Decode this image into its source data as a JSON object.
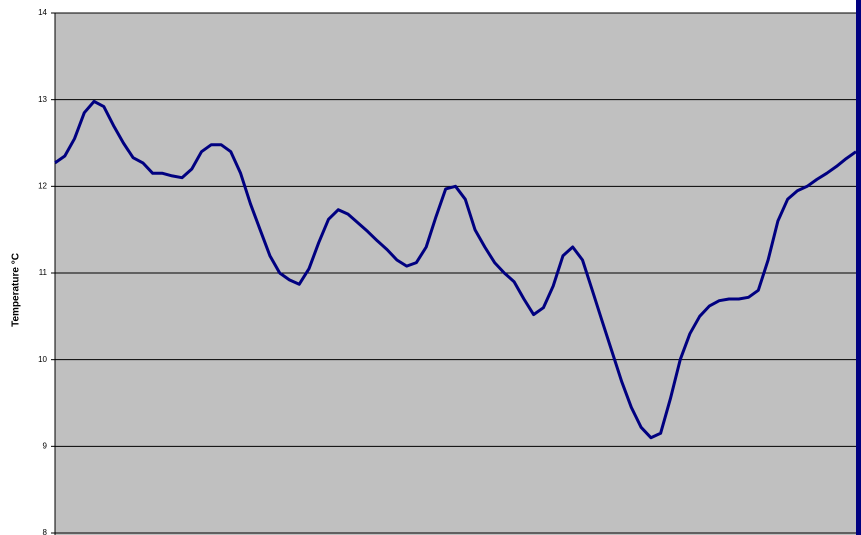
{
  "chart_data": {
    "type": "line",
    "y_label": "Temperature °C",
    "ylim": [
      8,
      14
    ],
    "yticks": [
      8,
      9,
      10,
      11,
      12,
      13,
      14
    ],
    "grid": true,
    "color": "#000080",
    "background": "#c0c0c0",
    "values": [
      12.27,
      12.35,
      12.55,
      12.85,
      12.98,
      12.92,
      12.7,
      12.5,
      12.33,
      12.27,
      12.15,
      12.15,
      12.12,
      12.1,
      12.2,
      12.4,
      12.48,
      12.48,
      12.4,
      12.15,
      11.8,
      11.5,
      11.2,
      11.0,
      10.92,
      10.87,
      11.05,
      11.35,
      11.62,
      11.73,
      11.68,
      11.58,
      11.48,
      11.37,
      11.27,
      11.15,
      11.08,
      11.12,
      11.3,
      11.65,
      11.97,
      12.0,
      11.85,
      11.5,
      11.3,
      11.12,
      11.0,
      10.9,
      10.7,
      10.52,
      10.6,
      10.85,
      11.2,
      11.3,
      11.15,
      10.8,
      10.45,
      10.1,
      9.75,
      9.45,
      9.22,
      9.1,
      9.15,
      9.55,
      10.0,
      10.3,
      10.5,
      10.62,
      10.68,
      10.7,
      10.7,
      10.72,
      10.8,
      11.15,
      11.6,
      11.85,
      11.95,
      12.0,
      12.08,
      12.15,
      12.23,
      12.32,
      12.4
    ]
  }
}
